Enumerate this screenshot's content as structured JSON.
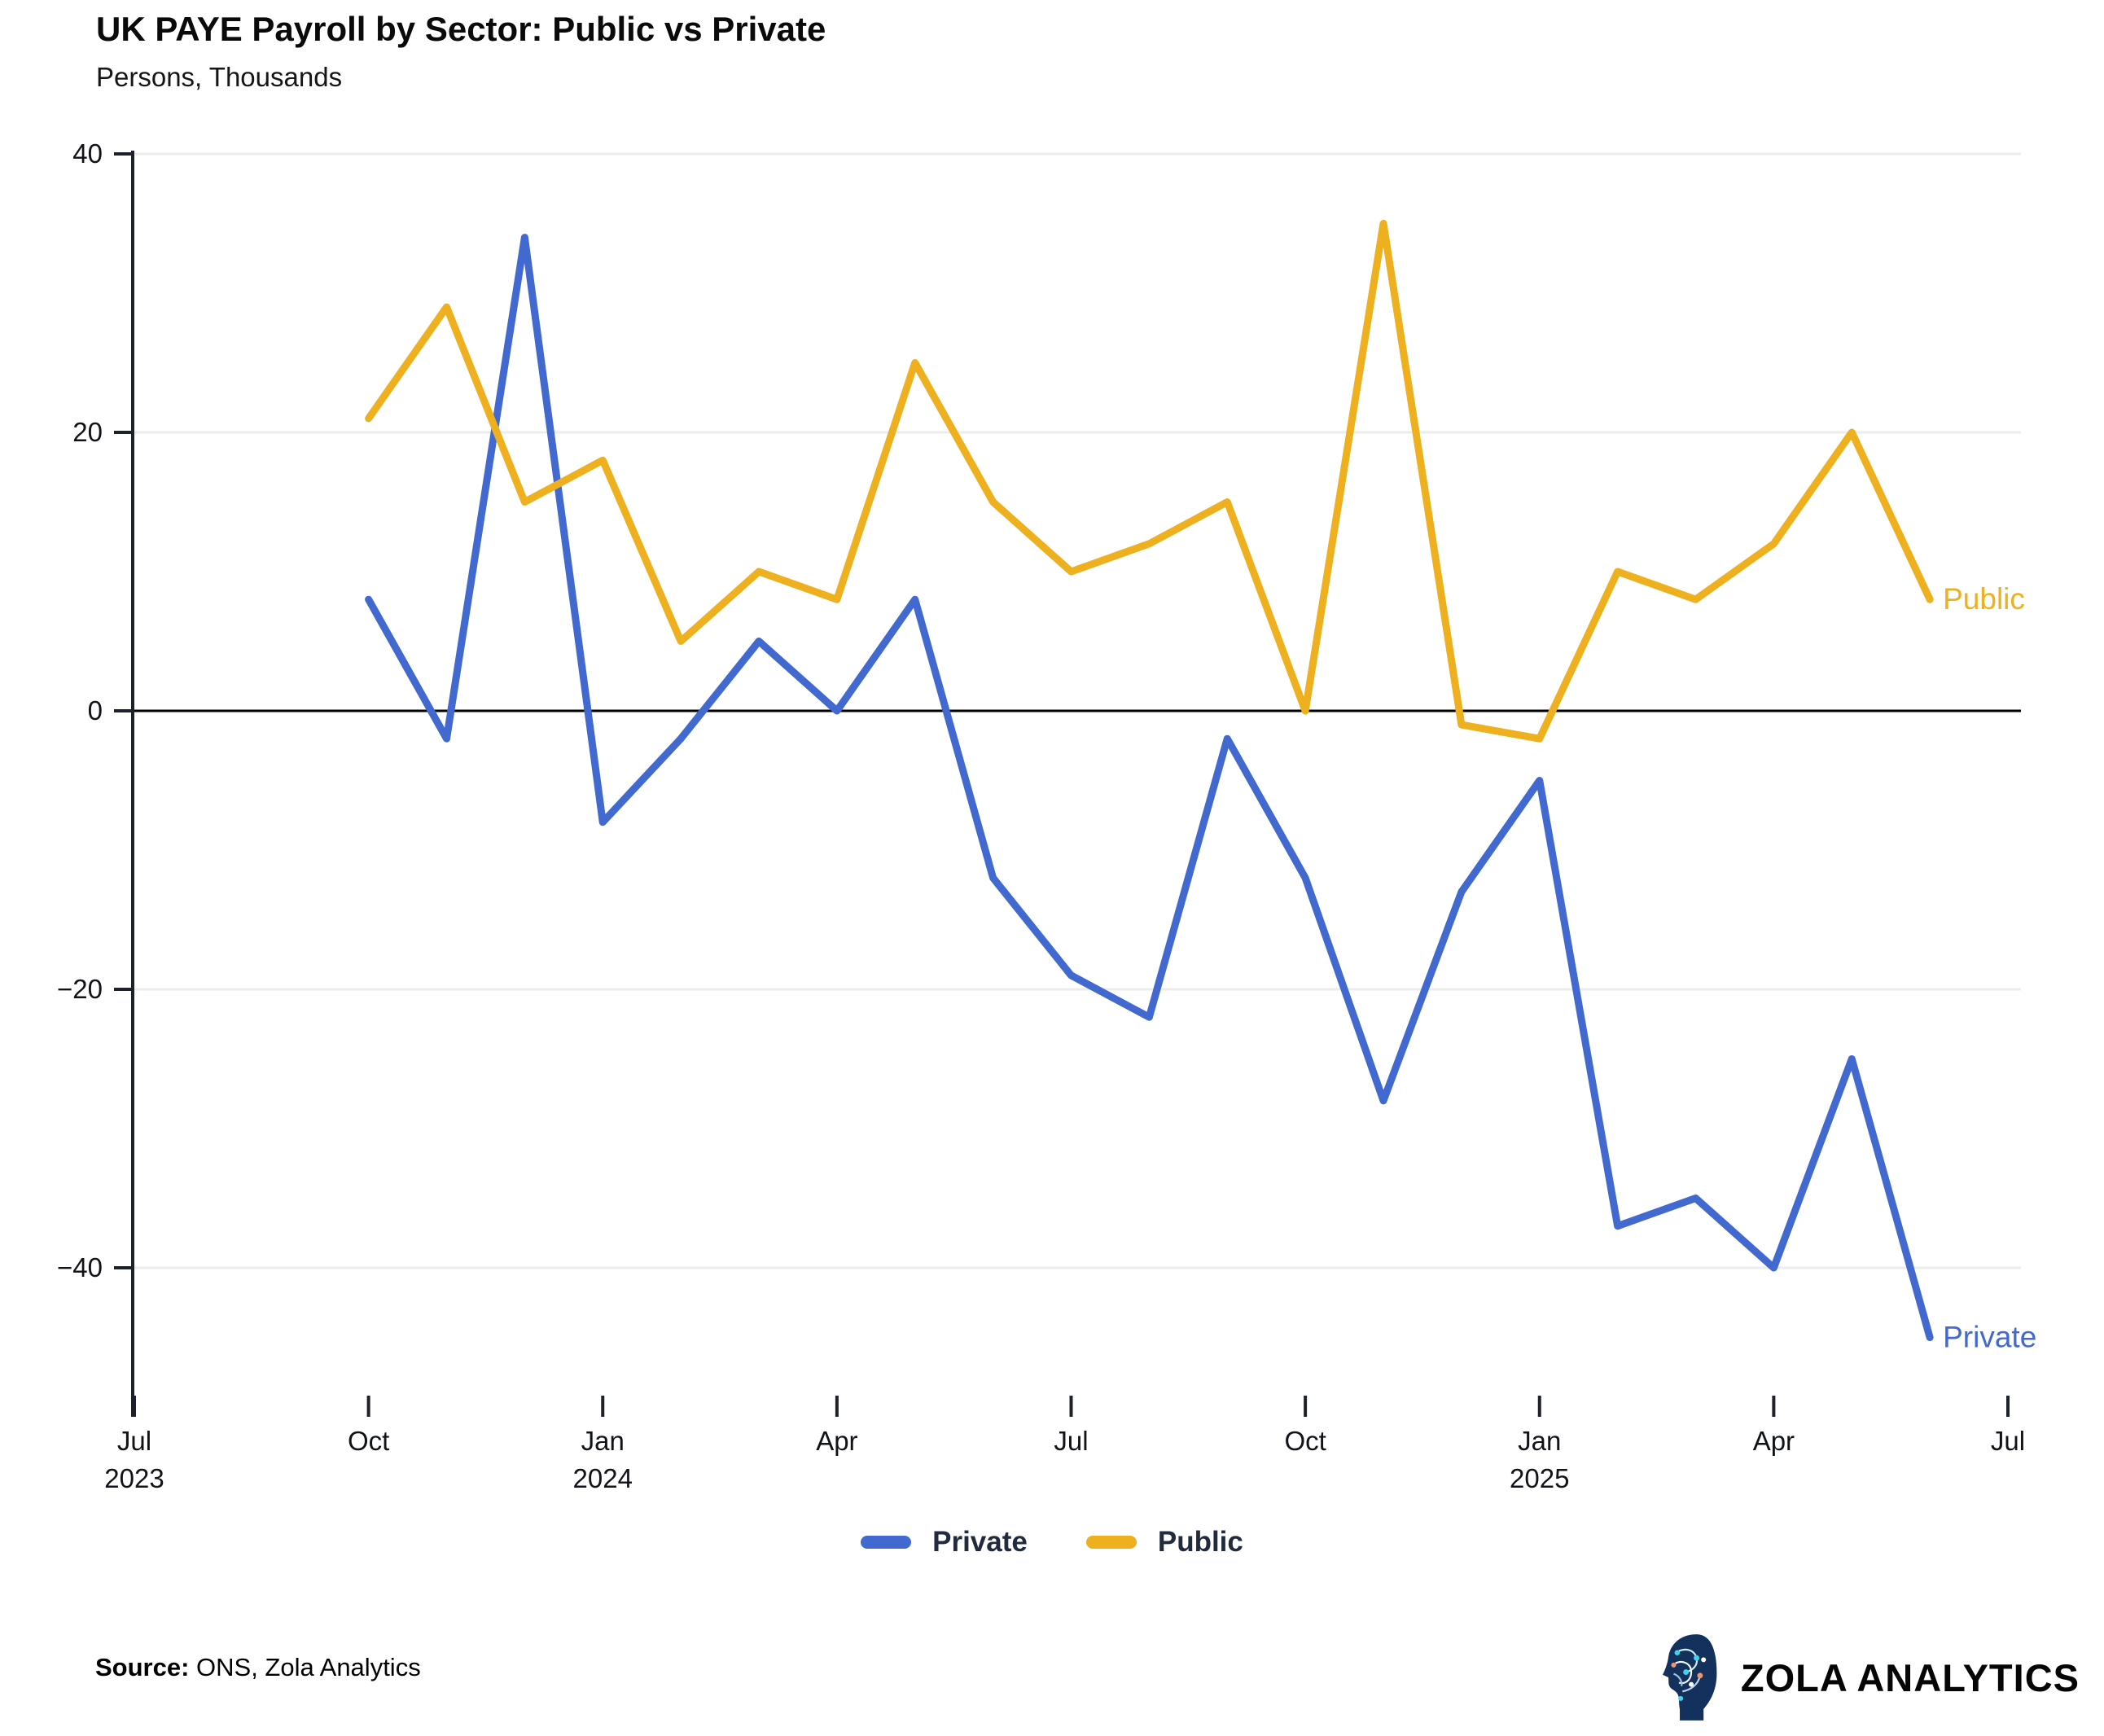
{
  "title": "UK PAYE Payroll by Sector: Public vs Private",
  "subtitle": "Persons, Thousands",
  "source": {
    "label": "Source:",
    "text": " ONS, Zola Analytics"
  },
  "brand": {
    "name": "ZOLA ANALYTICS",
    "icon": "brain-circuit-head-icon"
  },
  "colors": {
    "private": "#4169cf",
    "public": "#eeb01f",
    "zero_line": "#000000",
    "grid": "#ececec",
    "axis": "#1c212b",
    "text": "#101418"
  },
  "legend": [
    {
      "label": "Private",
      "color": "#4169cf"
    },
    {
      "label": "Public",
      "color": "#eeb01f"
    }
  ],
  "chart_data": {
    "type": "line",
    "title": "UK PAYE Payroll by Sector: Public vs Private",
    "ylabel": "Persons, Thousands",
    "xlabel": "",
    "grid": "horizontal",
    "legend_position": "bottom-center",
    "ylim": [
      -50,
      40
    ],
    "yticks": [
      40,
      20,
      0,
      -20,
      -40
    ],
    "x": [
      "Oct 2023",
      "Nov 2023",
      "Dec 2023",
      "Jan 2024",
      "Feb 2024",
      "Mar 2024",
      "Apr 2024",
      "May 2024",
      "Jun 2024",
      "Jul 2024",
      "Aug 2024",
      "Sep 2024",
      "Oct 2024",
      "Nov 2024",
      "Dec 2024",
      "Jan 2025",
      "Feb 2025",
      "Mar 2025",
      "Apr 2025",
      "May 2025",
      "Jun 2025"
    ],
    "xticks": [
      {
        "label": "Jul",
        "year": "2023",
        "offset": -3
      },
      {
        "label": "Oct",
        "year": "",
        "offset": 0
      },
      {
        "label": "Jan",
        "year": "2024",
        "offset": 3
      },
      {
        "label": "Apr",
        "year": "",
        "offset": 6
      },
      {
        "label": "Jul",
        "year": "",
        "offset": 9
      },
      {
        "label": "Oct",
        "year": "",
        "offset": 12
      },
      {
        "label": "Jan",
        "year": "2025",
        "offset": 15
      },
      {
        "label": "Apr",
        "year": "",
        "offset": 18
      },
      {
        "label": "Jul",
        "year": "",
        "offset": 21
      }
    ],
    "series": [
      {
        "name": "Private",
        "color": "#4169cf",
        "values": [
          8,
          -2,
          34,
          -8,
          -2,
          5,
          0,
          8,
          -12,
          -19,
          -22,
          -2,
          -12,
          -28,
          -13,
          -5,
          -37,
          -35,
          -40,
          -25,
          -45
        ]
      },
      {
        "name": "Public",
        "color": "#eeb01f",
        "values": [
          21,
          29,
          15,
          18,
          5,
          10,
          8,
          25,
          15,
          10,
          12,
          15,
          0,
          35,
          -1,
          -2,
          10,
          8,
          12,
          20,
          8
        ]
      }
    ],
    "end_labels": [
      "Private",
      "Public"
    ]
  }
}
